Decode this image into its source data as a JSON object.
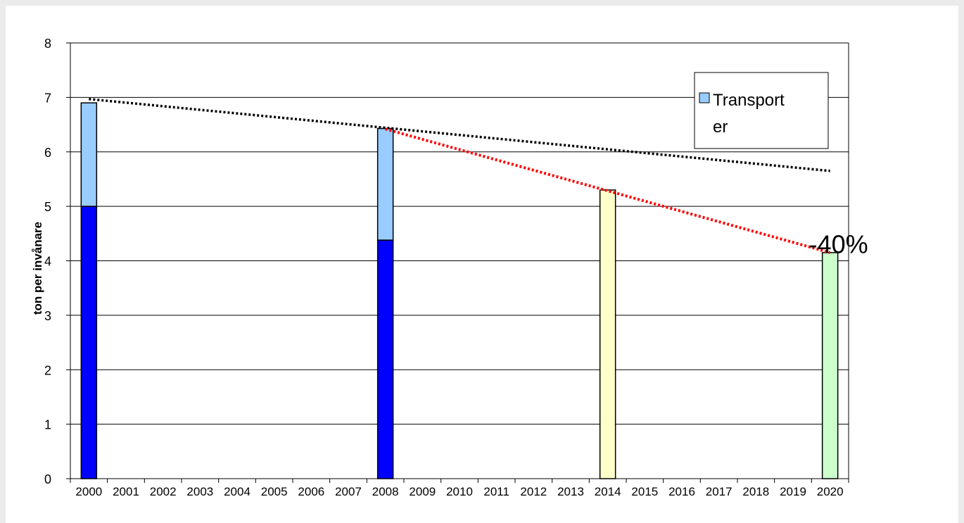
{
  "chart_data": {
    "type": "bar",
    "stacked": true,
    "title": "",
    "xlabel": "",
    "ylabel": "ton per invånare",
    "ylim": [
      0,
      8
    ],
    "yticks": [
      0,
      1,
      2,
      3,
      4,
      5,
      6,
      7,
      8
    ],
    "grid": true,
    "categories": [
      "2000",
      "2001",
      "2002",
      "2003",
      "2004",
      "2005",
      "2006",
      "2007",
      "2008",
      "2009",
      "2010",
      "2011",
      "2012",
      "2013",
      "2014",
      "2015",
      "2016",
      "2017",
      "2018",
      "2019",
      "2020"
    ],
    "series": [
      {
        "color": "#0000ff",
        "values": [
          5.0,
          null,
          null,
          null,
          null,
          null,
          null,
          null,
          4.38,
          null,
          null,
          null,
          null,
          null,
          null,
          null,
          null,
          null,
          null,
          null,
          null
        ]
      },
      {
        "name": "Transporter",
        "color": "#99ccff",
        "values": [
          1.9,
          null,
          null,
          null,
          null,
          null,
          null,
          null,
          2.05,
          null,
          null,
          null,
          null,
          null,
          null,
          null,
          null,
          null,
          null,
          null,
          null
        ]
      },
      {
        "color": "#ffffcc",
        "values": [
          null,
          null,
          null,
          null,
          null,
          null,
          null,
          null,
          null,
          null,
          null,
          null,
          null,
          null,
          5.3,
          null,
          null,
          null,
          null,
          null,
          null
        ]
      },
      {
        "color": "#ccffcc",
        "values": [
          null,
          null,
          null,
          null,
          null,
          null,
          null,
          null,
          null,
          null,
          null,
          null,
          null,
          null,
          null,
          null,
          null,
          null,
          null,
          null,
          4.15
        ]
      }
    ],
    "trend_lines": [
      {
        "style": "dotted",
        "color": "#000000",
        "from": [
          "2000",
          6.97
        ],
        "to": [
          "2020",
          5.65
        ]
      },
      {
        "style": "dotted",
        "color": "#ff0000",
        "from": [
          "2008",
          6.42
        ],
        "to": [
          "2020",
          4.15
        ]
      }
    ],
    "annotations": [
      {
        "text": "-40%",
        "at": [
          "2020",
          4.3
        ]
      }
    ],
    "legend": {
      "position": "top-right",
      "entries": [
        {
          "label": "Transport",
          "label2": "er",
          "color": "#99ccff"
        }
      ]
    }
  }
}
